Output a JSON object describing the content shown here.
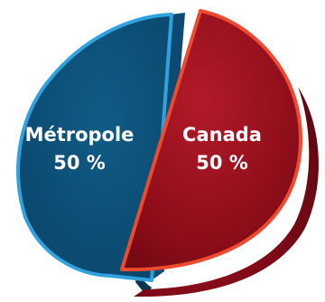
{
  "chart_data": {
    "type": "pie",
    "title": "",
    "slices": [
      {
        "label": "Métropole",
        "value": 50,
        "value_text": "50 %",
        "color": "#0b4f78",
        "border_color": "#2ea3e0",
        "side_color": "#0a3650"
      },
      {
        "label": "Canada",
        "value": 50,
        "value_text": "50 %",
        "color": "#8f0f1c",
        "border_color": "#ee4a2f",
        "side_color": "#5a0711"
      }
    ],
    "style": "3d-exploded",
    "legend": "none"
  }
}
